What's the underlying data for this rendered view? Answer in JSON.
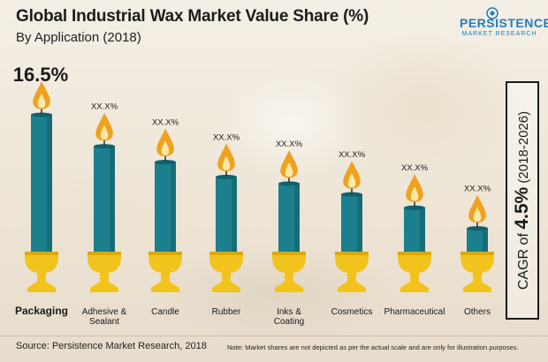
{
  "header": {
    "title": "Global Industrial Wax Market Value Share (%)",
    "subtitle": "By Application (2018)"
  },
  "logo": {
    "main": "PERSISTENCE",
    "sub": "MARKET RESEARCH"
  },
  "cagr": {
    "prefix": "CAGR of ",
    "value": "4.5%",
    "period": " (2018-2026)"
  },
  "chart_data": {
    "type": "bar",
    "title": "Global Industrial Wax Market Value Share (%)",
    "subtitle": "By Application (2018)",
    "categories": [
      [
        "Packaging"
      ],
      [
        "Adhesive &",
        "Sealant"
      ],
      [
        "Candle"
      ],
      [
        "Rubber"
      ],
      [
        "Inks &",
        "Coating"
      ],
      [
        "Cosmetics"
      ],
      [
        "Pharmaceutical"
      ],
      [
        "Others"
      ]
    ],
    "values": [
      16.5,
      12.7,
      10.8,
      9.0,
      8.2,
      6.9,
      5.3,
      2.8
    ],
    "data_labels": [
      "16.5%",
      "XX.X%",
      "XX.X%",
      "XX.X%",
      "XX.X%",
      "XX.X%",
      "XX.X%",
      "XX.X%"
    ],
    "ylim": [
      0,
      16.5
    ],
    "grid": false,
    "legend": "none"
  },
  "colors": {
    "candle": "#1c7f8d",
    "candle_dark": "#12606b",
    "flame_outer": "#f0a11e",
    "flame_inner": "#fde9a6",
    "holder": "#f2c31c",
    "holder_dark": "#d9a90f",
    "wick": "#2b2b2b"
  },
  "footer": {
    "source": "Source: Persistence Market Research, 2018",
    "note": "Note: Market shares are not depicted as per the actual scale and are only for illustration purposes."
  }
}
